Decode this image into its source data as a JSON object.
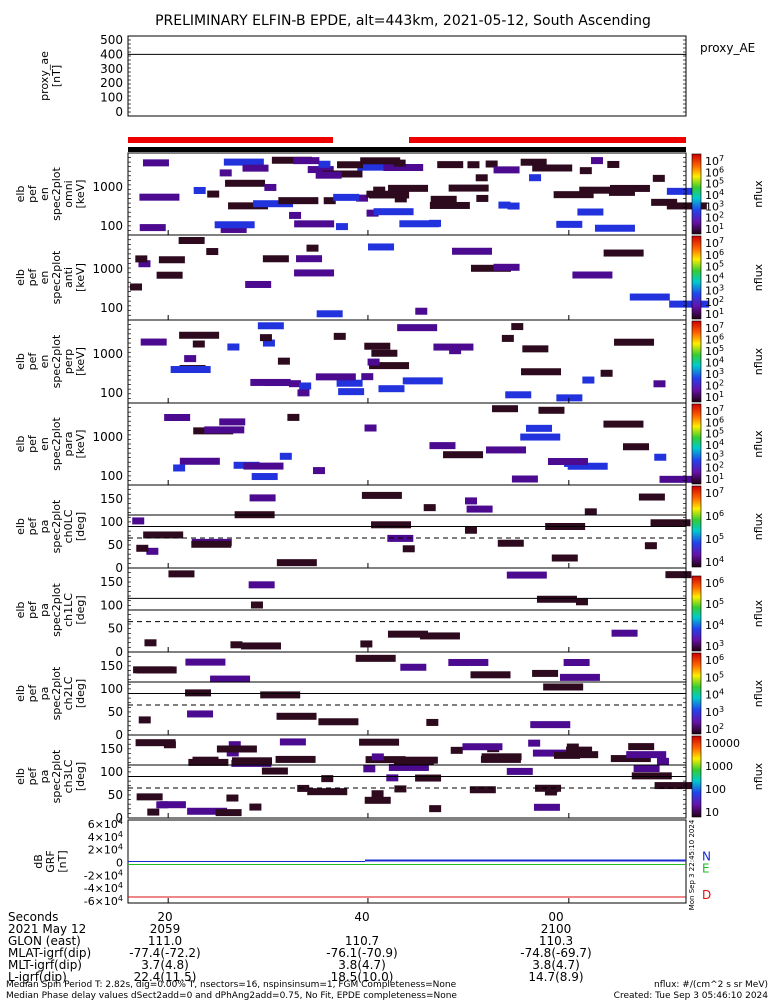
{
  "title": "PRELIMINARY ELFIN-B EPDE, alt=443km, 2021-05-12, South Ascending",
  "axis_labels": {
    "proxy_ae": [
      "proxy_ae",
      "[nT]"
    ],
    "omni": [
      "elb",
      "pef",
      "en",
      "spec2plot",
      "omni",
      "[keV]"
    ],
    "anti": [
      "elb",
      "pef",
      "en",
      "spec2plot",
      "anti",
      "[keV]"
    ],
    "perp": [
      "elb",
      "pef",
      "en",
      "spec2plot",
      "perp",
      "[keV]"
    ],
    "para": [
      "elb",
      "pef",
      "en",
      "spec2plot",
      "para",
      "[keV]"
    ],
    "ch0": [
      "elb",
      "pef",
      "pa",
      "spec2plot",
      "ch0LC",
      "[deg]"
    ],
    "ch1": [
      "elb",
      "pef",
      "pa",
      "spec2plot",
      "ch1LC",
      "[deg]"
    ],
    "ch2": [
      "elb",
      "pef",
      "pa",
      "spec2plot",
      "ch2LC",
      "[deg]"
    ],
    "ch3": [
      "elb",
      "pef",
      "pa",
      "spec2plot",
      "ch3LC",
      "[deg]"
    ],
    "bgrf": [
      "dB",
      "GRF",
      "[nT]"
    ]
  },
  "right_labels": {
    "proxy_ae": "proxy_AE",
    "nflux": "nflux",
    "bgrf_components": [
      "N",
      "E",
      "D"
    ],
    "timestamp": "Mon Sep  3 22:45:10 2024"
  },
  "colorbars": [
    {
      "ticks": [
        "10^7",
        "10^6",
        "10^5",
        "10^4",
        "10^3",
        "10^2",
        "10^1"
      ]
    },
    {
      "ticks": [
        "10^7",
        "10^6",
        "10^5",
        "10^4",
        "10^3",
        "10^2",
        "10^1"
      ]
    },
    {
      "ticks": [
        "10^7",
        "10^6",
        "10^5",
        "10^4",
        "10^3",
        "10^2",
        "10^1"
      ]
    },
    {
      "ticks": [
        "10^7",
        "10^6",
        "10^5",
        "10^4",
        "10^3",
        "10^2",
        "10^1"
      ]
    },
    {
      "ticks": [
        "10^7",
        "10^6",
        "10^5",
        "10^4"
      ]
    },
    {
      "ticks": [
        "10^6",
        "10^5",
        "10^4",
        "10^3"
      ]
    },
    {
      "ticks": [
        "10^6",
        "10^5",
        "10^4",
        "10^3",
        "10^2"
      ]
    },
    {
      "ticks": [
        "10000",
        "1000",
        "100",
        "10"
      ]
    }
  ],
  "footer": {
    "rows": [
      {
        "label": "Seconds",
        "values": [
          "20",
          "40",
          "00"
        ]
      },
      {
        "label": "2021 May 12",
        "values": [
          "2059",
          "",
          "2100"
        ]
      },
      {
        "label": "GLON (east)",
        "values": [
          "111.0",
          "110.7",
          "110.3"
        ]
      },
      {
        "label": "MLAT-igrf(dip)",
        "values": [
          "-77.4(-72.2)",
          "-76.1(-70.9)",
          "-74.8(-69.7)"
        ]
      },
      {
        "label": "MLT-igrf(dip)",
        "values": [
          "3.7(4.8)",
          "3.8(4.7)",
          "3.8(4.7)"
        ]
      },
      {
        "label": "L-igrf(dip)",
        "values": [
          "22.4(11.5)",
          "18.5(10.0)",
          "14.7(8.9)"
        ]
      }
    ],
    "note1": "Median Spin Period T: 2.82s, dig=0.00% T, nsectors=16, nspinsinsum=1, FGM Completeness=None",
    "note2": "Median Phase delay values dSect2add=0 and dPhAng2add=0.75, No Fit, EPDE completeness=None",
    "nflux_units": "nflux: #/(cm^2 s sr MeV)",
    "created": "Created: Tue Sep  3 05:46:10 2024"
  },
  "colors": {
    "science_bar": "#ee0000",
    "dark_cell": "#2d0a1e",
    "purple_cell": "#4b0a8f",
    "blue_cell": "#2233dd",
    "n_line": "#1a2bd0",
    "e_line": "#22bb22",
    "d_line": "#dd1111"
  },
  "chart_data": {
    "type": "heatmap",
    "x_time_ticks": [
      "20",
      "40",
      "00"
    ],
    "proxy_ae": {
      "ylim": [
        0,
        500
      ],
      "yticks": [
        "500",
        "400",
        "300",
        "200",
        "100",
        "0"
      ],
      "value": 400
    },
    "energy_panels": {
      "ytick_labels": [
        "1000",
        "100"
      ],
      "names": [
        "omni",
        "anti",
        "perp",
        "para"
      ],
      "colorbar_range": [
        "10^1",
        "10^7"
      ]
    },
    "pitch_angle_panels": {
      "ylim": [
        0,
        180
      ],
      "ytick_labels": [
        "150",
        "100",
        "50",
        "0"
      ],
      "names": [
        "ch0LC",
        "ch1LC",
        "ch2LC",
        "ch3LC"
      ]
    },
    "bgrf": {
      "yticks": [
        "6×10^4",
        "4×10^4",
        "2×10^4",
        "0",
        "-2×10^4",
        "-4×10^4",
        "-6×10^4"
      ],
      "components": [
        "N",
        "E",
        "D"
      ]
    }
  }
}
